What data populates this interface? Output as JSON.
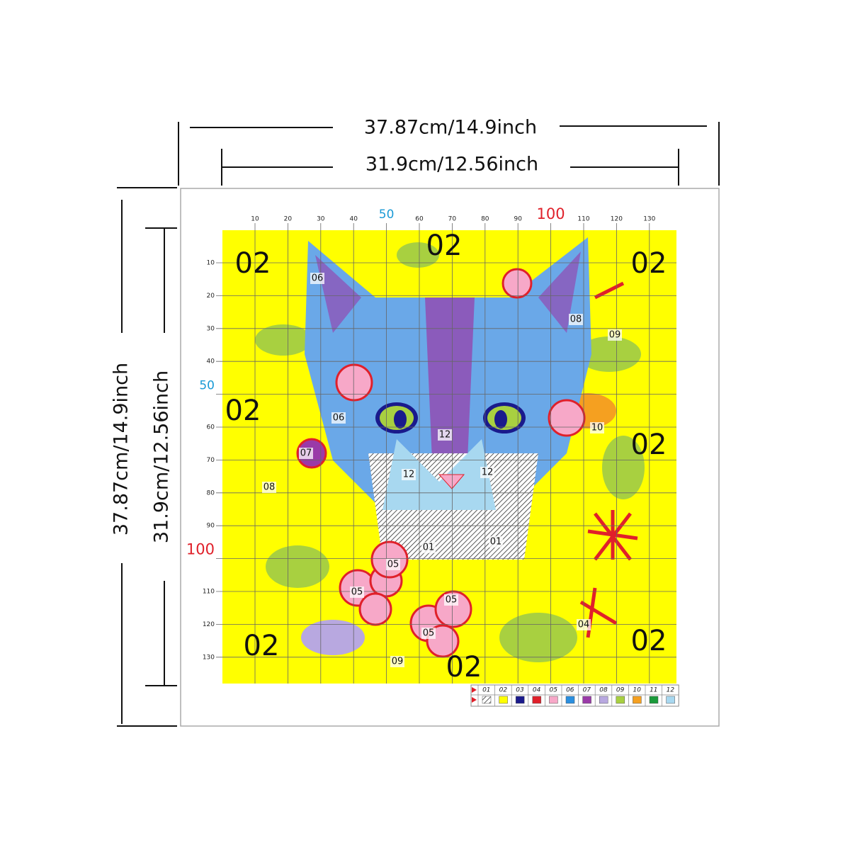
{
  "dimensions": {
    "outer_width": "37.87cm/14.9inch",
    "inner_width": "31.9cm/12.56inch",
    "outer_height": "37.87cm/14.9inch",
    "inner_height": "31.9cm/12.56inch"
  },
  "top_ruler": [
    "10",
    "20",
    "30",
    "40",
    "50",
    "60",
    "70",
    "80",
    "90",
    "100",
    "110",
    "120",
    "130"
  ],
  "left_ruler": [
    "10",
    "20",
    "30",
    "40",
    "50",
    "60",
    "70",
    "80",
    "90",
    "100",
    "110",
    "120",
    "130"
  ],
  "region_labels": [
    "02",
    "02",
    "02",
    "02",
    "02",
    "02",
    "02",
    "02",
    "06",
    "08",
    "09",
    "06",
    "10",
    "12",
    "07",
    "12",
    "12",
    "08",
    "01",
    "01",
    "05",
    "05",
    "05",
    "05",
    "04",
    "09"
  ],
  "legend": [
    {
      "code": "01",
      "color": "hatch"
    },
    {
      "code": "02",
      "color": "#ffff00"
    },
    {
      "code": "03",
      "color": "#1a1a8c"
    },
    {
      "code": "04",
      "color": "#e0202a"
    },
    {
      "code": "05",
      "color": "#f7a8c8"
    },
    {
      "code": "06",
      "color": "#2a8fe0"
    },
    {
      "code": "07",
      "color": "#9a3aa8"
    },
    {
      "code": "08",
      "color": "#b8a8e0"
    },
    {
      "code": "09",
      "color": "#a8d040"
    },
    {
      "code": "10",
      "color": "#f5a020"
    },
    {
      "code": "11",
      "color": "#1a9a3a"
    },
    {
      "code": "12",
      "color": "#a8d8f0"
    }
  ]
}
